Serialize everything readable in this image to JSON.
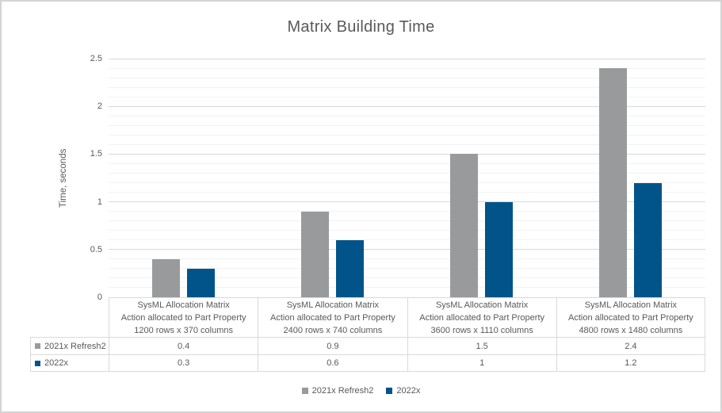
{
  "chart_data": {
    "type": "bar",
    "title": "Matrix Building Time",
    "ylabel": "Time, seconds",
    "ylim": [
      0,
      2.5
    ],
    "y_major_ticks": [
      0,
      0.5,
      1,
      1.5,
      2,
      2.5
    ],
    "y_minor_unit": 0.1,
    "grid": "major+minor horizontal",
    "legend_position": "bottom",
    "data_table_shown": true,
    "categories": [
      [
        "SysML Allocation Matrix",
        "Action allocated to Part Property",
        "1200 rows x 370 columns"
      ],
      [
        "SysML Allocation Matrix",
        "Action allocated to Part Property",
        "2400 rows x 740 columns"
      ],
      [
        "SysML Allocation Matrix",
        "Action allocated to Part Property",
        "3600 rows x 1110 columns"
      ],
      [
        "SysML Allocation Matrix",
        "Action allocated to Part Property",
        "4800 rows x 1480 columns"
      ]
    ],
    "series": [
      {
        "name": "2021x Refresh2",
        "color": "#999A9C",
        "values": [
          0.4,
          0.9,
          1.5,
          2.4
        ]
      },
      {
        "name": "2022x",
        "color": "#00548A",
        "values": [
          0.3,
          0.6,
          1,
          1.2
        ]
      }
    ]
  },
  "colors": {
    "title_text": "#595959",
    "axis_text": "#595959",
    "major_gridline": "#D9D9D9",
    "minor_gridline": "#F2F2F2",
    "table_border": "#D9D9D9",
    "frame_border": "#D4D4D4",
    "background": "#FFFFFF"
  }
}
